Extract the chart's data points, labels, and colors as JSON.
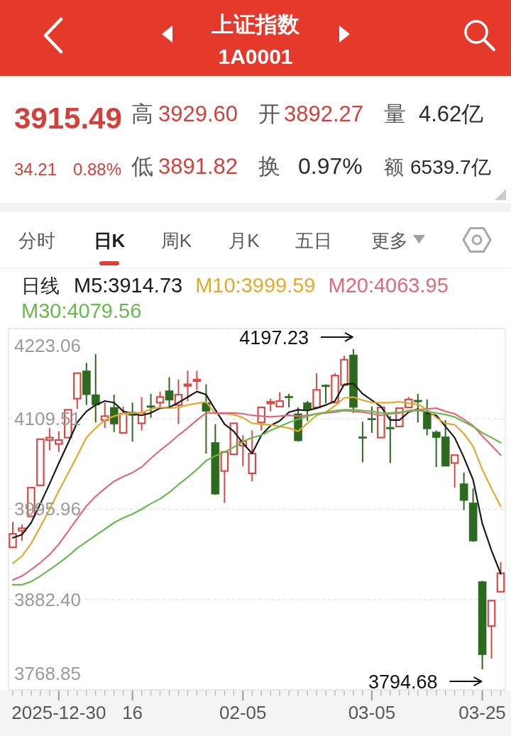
{
  "chart_data": [
    {
      "type": "other",
      "title": "上证指数",
      "subtitle": "1A0001",
      "annotations": [
        "3915.49",
        "高",
        "3929.60",
        "开",
        "3892.27",
        "量",
        "4.62亿",
        "34.21",
        "0.88%",
        "低",
        "3891.82",
        "换",
        "0.97%",
        "额",
        "6539.7亿",
        "分时",
        "日K",
        "周K",
        "月K",
        "五日",
        "更多"
      ]
    },
    {
      "type": "candlestick",
      "legend_title": "日线",
      "legend": "top left",
      "grid": "y",
      "categories": [
        null,
        null,
        null,
        null,
        null,
        "2025-12-30",
        null,
        null,
        null,
        null,
        null,
        null,
        null,
        "16",
        null,
        null,
        null,
        null,
        null,
        null,
        null,
        null,
        null,
        null,
        null,
        "02-05",
        null,
        null,
        null,
        null,
        null,
        null,
        null,
        null,
        null,
        null,
        null,
        null,
        null,
        "03-05",
        null,
        null,
        null,
        null,
        null,
        null,
        null,
        null,
        null,
        null,
        null,
        "03-25",
        null,
        null
      ],
      "ohlc": [
        [
          3948,
          3980,
          3948,
          3965
        ],
        [
          3969,
          3977,
          3956,
          3972
        ],
        [
          3987,
          4023,
          3987,
          4023
        ],
        [
          4026,
          4084,
          4026,
          4084
        ],
        [
          4083,
          4098,
          4070,
          4086
        ],
        [
          4078,
          4094,
          4068,
          4083
        ],
        [
          4086,
          4121,
          4086,
          4121
        ],
        [
          4135,
          4168,
          4122,
          4167
        ],
        [
          4170,
          4180,
          4127,
          4140
        ],
        [
          4140,
          4191,
          4105,
          4127
        ],
        [
          4108,
          4130,
          4098,
          4113
        ],
        [
          4124,
          4140,
          4093,
          4103
        ],
        [
          4092,
          4125,
          4092,
          4116
        ],
        [
          4118,
          4130,
          4081,
          4114
        ],
        [
          4104,
          4137,
          4095,
          4117
        ],
        [
          4126,
          4141,
          4111,
          4124
        ],
        [
          4130,
          4144,
          4122,
          4137
        ],
        [
          4145,
          4162,
          4124,
          4133
        ],
        [
          4127,
          4159,
          4103,
          4140
        ],
        [
          4151,
          4170,
          4132,
          4153
        ],
        [
          4157,
          4170,
          4146,
          4159
        ],
        [
          4130,
          4153,
          4066,
          4119
        ],
        [
          4080,
          4103,
          4014,
          4015
        ],
        [
          4044,
          4068,
          4004,
          4068
        ],
        [
          4065,
          4104,
          4065,
          4104
        ],
        [
          4076,
          4089,
          4050,
          4081
        ],
        [
          4041,
          4095,
          4031,
          4066
        ],
        [
          4105,
          4124,
          4095,
          4124
        ],
        [
          4129,
          4135,
          4119,
          4131
        ],
        [
          4125,
          4143,
          4125,
          4132
        ],
        [
          4138,
          4141,
          4124,
          4136
        ],
        [
          4116,
          4124,
          4081,
          4082
        ],
        [
          4130,
          4132,
          4107,
          4121
        ],
        [
          4124,
          4167,
          4124,
          4146
        ],
        [
          4152,
          4153,
          4129,
          4150
        ],
        [
          4130,
          4167,
          4130,
          4164
        ],
        [
          4152,
          4189,
          4152,
          4184
        ],
        [
          4190,
          4197.23,
          4117,
          4124
        ],
        [
          4087,
          4106,
          4055,
          4085
        ],
        [
          4110,
          4125,
          4092,
          4109
        ],
        [
          4086,
          4124,
          4086,
          4124
        ],
        [
          4099,
          4113,
          4054,
          4097
        ],
        [
          4100,
          4123,
          4100,
          4123
        ],
        [
          4124,
          4137,
          4124,
          4134
        ],
        [
          4133,
          4141,
          4105,
          4131
        ],
        [
          4117,
          4134,
          4089,
          4097
        ],
        [
          4093,
          4095,
          4049,
          4086
        ],
        [
          4087,
          4108,
          4050,
          4050
        ],
        [
          4054,
          4064,
          4023,
          4064
        ],
        [
          4028,
          4042,
          3995,
          4007
        ],
        [
          4004,
          4022,
          3955,
          3956
        ],
        [
          3905,
          3906,
          3794.68,
          3813
        ],
        [
          3849,
          3881,
          3808,
          3881
        ],
        [
          3892.27,
          3929.6,
          3891.82,
          3915.49
        ]
      ],
      "colors": [
        "#d84a45",
        "#d84a45",
        "#d84a45",
        "#d84a45",
        "#d84a45",
        "#d84a45",
        "#d84a45",
        "#d84a45",
        "#2c6a1f",
        "#2c6a1f",
        "#d84a45",
        "#2c6a1f",
        "#d84a45",
        "#2c6a1f",
        "#d84a45",
        "#2c6a1f",
        "#d84a45",
        "#2c6a1f",
        "#d84a45",
        "#d84a45",
        "#d84a45",
        "#2c6a1f",
        "#2c6a1f",
        "#d84a45",
        "#d84a45",
        "#d84a45",
        "#d84a45",
        "#d84a45",
        "#d84a45",
        "#d84a45",
        "#2c6a1f",
        "#2c6a1f",
        "#2c6a1f",
        "#d84a45",
        "#2c6a1f",
        "#d84a45",
        "#d84a45",
        "#2c6a1f",
        "#2c6a1f",
        "#2c6a1f",
        "#d84a45",
        "#2c6a1f",
        "#d84a45",
        "#d84a45",
        "#2c6a1f",
        "#2c6a1f",
        "#2c6a1f",
        "#2c6a1f",
        "#d84a45",
        "#2c6a1f",
        "#2c6a1f",
        "#2c6a1f",
        "#d84a45",
        "#d84a45"
      ],
      "series": [
        {
          "type": "line",
          "name": "M5:3914.73",
          "color": "#1a1a1a",
          "values": [
            3960,
            3964,
            3979,
            4003,
            4028,
            4054,
            4079,
            4105,
            4119,
            4127,
            4132,
            4130,
            4119,
            4116,
            4114,
            4117,
            4123,
            4124,
            4130,
            4137,
            4144,
            4140,
            4121,
            4103,
            4094,
            4079,
            4066,
            4089,
            4101,
            4107,
            4118,
            4121,
            4120,
            4123,
            4127,
            4132,
            4153,
            4154,
            4141,
            4133,
            4125,
            4108,
            4108,
            4118,
            4122,
            4117,
            4114,
            4100,
            4086,
            4061,
            4033,
            3978,
            3944,
            3914.73
          ]
        },
        {
          "type": "line",
          "name": "M10:3999.59",
          "color": "#e3a92f",
          "values": [
            3928,
            3937,
            3953,
            3974,
            3996,
            4019,
            4041,
            4063,
            4086,
            4098,
            4108,
            4113,
            4116,
            4117,
            4117,
            4122,
            4124,
            4123,
            4124,
            4127,
            4129,
            4131,
            4116,
            4116,
            4115,
            4111,
            4104,
            4103,
            4102,
            4100,
            4098,
            4094,
            4104,
            4114,
            4118,
            4126,
            4136,
            4137,
            4133,
            4130,
            4130,
            4130,
            4131,
            4129,
            4128,
            4121,
            4111,
            4104,
            4102,
            4091,
            4075,
            4046,
            4022,
            3999.59
          ]
        },
        {
          "type": "line",
          "name": "M20:4063.95",
          "color": "#e0697a",
          "values": [
            3907,
            3912,
            3920,
            3929,
            3939,
            3952,
            3968,
            3984,
            4000,
            4012,
            4022,
            4031,
            4037,
            4042,
            4049,
            4060,
            4070,
            4079,
            4089,
            4098,
            4108,
            4117,
            4117,
            4117,
            4117,
            4116,
            4114,
            4113,
            4112,
            4113,
            4114,
            4113,
            4114,
            4116,
            4117,
            4118,
            4120,
            4119,
            4118,
            4116,
            4114,
            4116,
            4117,
            4120,
            4121,
            4122,
            4123,
            4119,
            4116,
            4109,
            4101,
            4088,
            4076,
            4063.95
          ]
        },
        {
          "type": "line",
          "name": "M30:4079.56",
          "color": "#67bb4e",
          "values": [
            3901,
            3901,
            3905,
            3912,
            3920,
            3928,
            3937,
            3947,
            3955,
            3963,
            3971,
            3979,
            3985,
            3990,
            3996,
            4003,
            4009,
            4017,
            4027,
            4036,
            4046,
            4057,
            4063,
            4068,
            4074,
            4081,
            4086,
            4089,
            4095,
            4100,
            4105,
            4109,
            4113,
            4116,
            4118,
            4120,
            4121,
            4121,
            4120,
            4119,
            4117,
            4117,
            4118,
            4119,
            4120,
            4119,
            4117,
            4115,
            4112,
            4106,
            4100,
            4092,
            4086,
            4079.56
          ]
        }
      ],
      "ylim": [
        3768.85,
        4223.06
      ],
      "yticks": [
        3768.85,
        {
          "value": 3882.4,
          "label": "3882.40"
        },
        3995.96,
        4109.51,
        4223.06
      ],
      "annotations": [
        "4197.23",
        "3794.68"
      ]
    }
  ]
}
